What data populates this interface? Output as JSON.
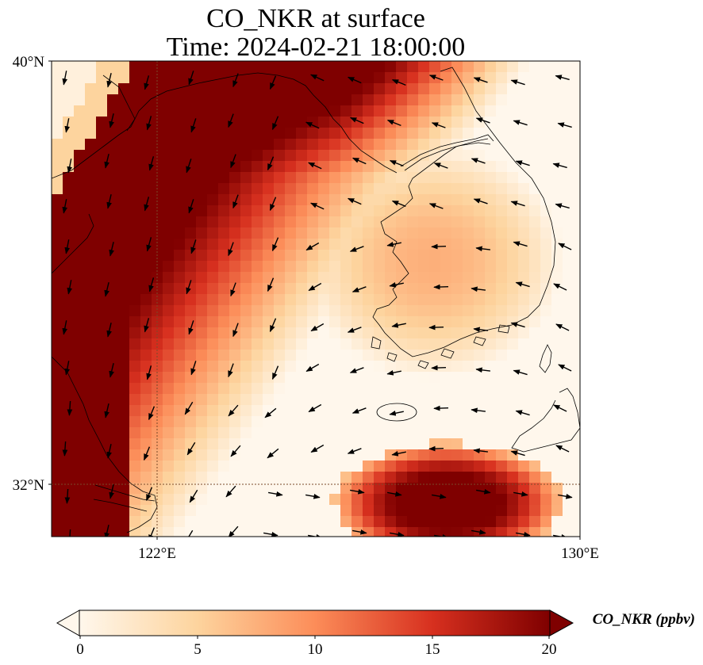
{
  "title": {
    "line1": "CO_NKR at surface",
    "line2": "Time: 2024-02-21 18:00:00"
  },
  "map": {
    "variable": "CO_NKR",
    "level": "surface",
    "lat_ticks": [
      "40°N",
      "32°N"
    ],
    "lon_ticks": [
      "122°E",
      "130°E"
    ],
    "lat_range": [
      31,
      40
    ],
    "lon_range": [
      120,
      130
    ],
    "gridlines": [
      {
        "lon": 122
      },
      {
        "lat": 32
      }
    ],
    "layers": [
      "concentration-field",
      "coastlines",
      "wind-vectors"
    ],
    "colormap": "OrRd"
  },
  "colorbar": {
    "label": "CO_NKR (ppbv)",
    "ticks": [
      "0",
      "5",
      "10",
      "15",
      "20"
    ],
    "min": 0,
    "max": 20,
    "extend": "both",
    "colors": [
      "#fff7ec",
      "#fdd49e",
      "#fc8d59",
      "#d7301f",
      "#7f0000"
    ]
  }
}
